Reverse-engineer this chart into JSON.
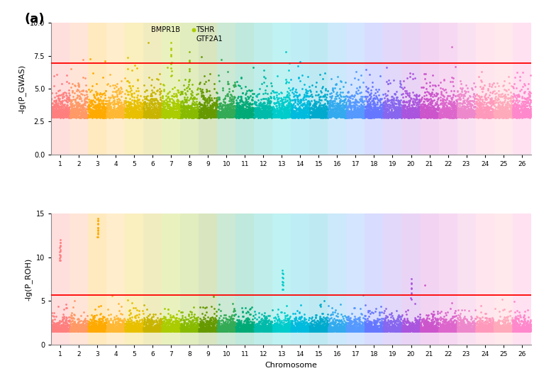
{
  "chromosomes": [
    1,
    2,
    3,
    4,
    5,
    6,
    7,
    8,
    9,
    10,
    11,
    12,
    13,
    14,
    15,
    16,
    17,
    18,
    19,
    20,
    21,
    22,
    23,
    24,
    25,
    26
  ],
  "chr_colors": [
    "#FF7F7F",
    "#FF9966",
    "#FFAA00",
    "#FFB833",
    "#E8C000",
    "#C8B400",
    "#AACC00",
    "#88BB00",
    "#669900",
    "#33AA55",
    "#00AA77",
    "#00BBAA",
    "#00CCCC",
    "#00BBDD",
    "#00AACC",
    "#33AAEE",
    "#5599FF",
    "#6677FF",
    "#8866EE",
    "#AA55DD",
    "#CC55CC",
    "#DD66CC",
    "#EE88CC",
    "#FF99BB",
    "#FFAABB",
    "#FF88CC"
  ],
  "gwas_threshold": 6.94,
  "roh_threshold": 5.7,
  "gwas_ylim": [
    0,
    10.0
  ],
  "roh_ylim": [
    0,
    15
  ],
  "gwas_yticks": [
    0.0,
    2.5,
    5.0,
    7.5,
    10.0
  ],
  "roh_yticks": [
    0,
    5,
    10,
    15
  ],
  "panel_label": "(a)",
  "xlabel": "Chromosome",
  "ylabel_gwas": "-lg(P_GWAS)",
  "ylabel_roh": "-lg(P_ROH)",
  "background_color": "#ffffff",
  "gwas_baseline_mean": 2.8,
  "gwas_baseline_exp_scale": 0.6,
  "roh_baseline_mean": 1.5,
  "roh_baseline_exp_scale": 0.5,
  "n_snps_per_chr": 400,
  "bmpr1b_peak": 8.5,
  "tshr_peak": 7.8,
  "gwas_peak_chr10": 6.3,
  "gwas_peak_chr14": 5.5,
  "gwas_peak_chr17": 6.3,
  "roh_peak_chr1": 12.0,
  "roh_peak_chr3": 14.5,
  "roh_peak_chr13": 8.5,
  "roh_peak_chr20": 7.5,
  "dot_size": 4,
  "bg_alpha": 0.25,
  "annotation_bmpr1b": "BMPR1B",
  "annotation_tshr": "TSHR",
  "annotation_gtf2a1": "GTF2A1",
  "annotation_dot_color": "#AACC00"
}
